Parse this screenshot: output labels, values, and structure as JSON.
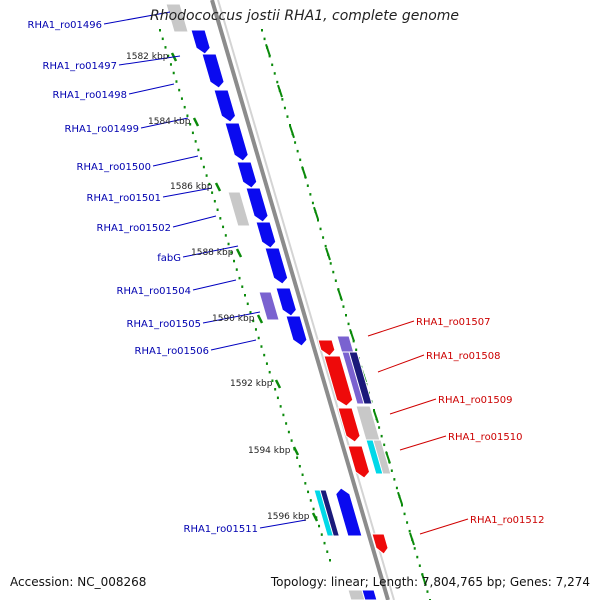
{
  "title": "Rhodococcus jostii RHA1, complete genome",
  "footer": {
    "accession": "Accession: NC_008268",
    "topology": "Topology: linear; Length: 7,804,765 bp; Genes: 7,274"
  },
  "colors": {
    "forward_gene": "#0a0af0",
    "reverse_gene": "#ee0a0a",
    "hypothetical": "#c8c8c8",
    "cyan_gene": "#00d8e8",
    "purple_gene": "#7a62d0",
    "navy_gene": "#1a1a7a",
    "backbone": "#8c8c8c",
    "ticks": "#0a8a0a"
  },
  "scale_labels": [
    "1582 kbp",
    "1584 kbp",
    "1586 kbp",
    "1588 kbp",
    "1590 kbp",
    "1592 kbp",
    "1594 kbp",
    "1596 kbp"
  ],
  "left_genes": [
    "RHA1_ro01496",
    "RHA1_ro01497",
    "RHA1_ro01498",
    "RHA1_ro01499",
    "RHA1_ro01500",
    "RHA1_ro01501",
    "RHA1_ro01502",
    "fabG",
    "RHA1_ro01504",
    "RHA1_ro01505",
    "RHA1_ro01506",
    "RHA1_ro01511"
  ],
  "right_genes": [
    "RHA1_ro01507",
    "RHA1_ro01508",
    "RHA1_ro01509",
    "RHA1_ro01510",
    "RHA1_ro01512"
  ]
}
